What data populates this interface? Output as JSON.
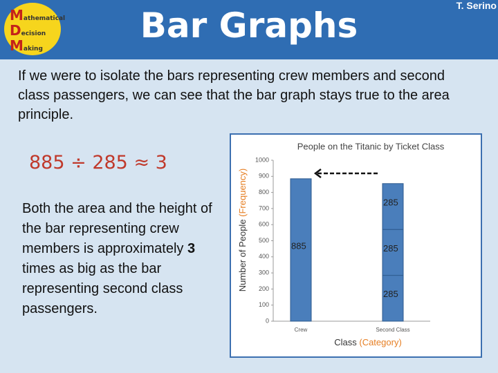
{
  "header": {
    "title": "Bar Graphs",
    "author": "T. Serino",
    "logo": {
      "letters": [
        "M",
        "D",
        "M"
      ],
      "words": [
        "athematical",
        "ecision",
        "aking"
      ]
    }
  },
  "intro": "If we were to isolate the bars representing crew members and second class passengers, we can see that the bar graph stays true to the area principle.",
  "equation": "885 ÷ 285 ≈ 3",
  "body": {
    "before": "Both the area and the height of the bar representing crew members is approximately ",
    "bold": "3",
    "after": " times as big as the bar representing second class passengers."
  },
  "chart_data": {
    "type": "bar",
    "title": "People on the Titanic by Ticket Class",
    "x_label": "Class",
    "x_label_note": "(Category)",
    "y_label": "Number of People",
    "y_label_note": "(Frequency)",
    "categories": [
      "Crew",
      "Second Class"
    ],
    "series": [
      {
        "color": "#4a7ebb",
        "values": [
          885,
          285
        ]
      },
      {
        "color": "#4a7ebb",
        "values": [
          null,
          285
        ]
      },
      {
        "color": "#4a7ebb",
        "values": [
          null,
          285
        ]
      }
    ],
    "stacked": true,
    "ylim": [
      0,
      1000
    ],
    "yticks": [
      0,
      100,
      200,
      300,
      400,
      500,
      600,
      700,
      800,
      900,
      1000
    ],
    "grid": false
  }
}
